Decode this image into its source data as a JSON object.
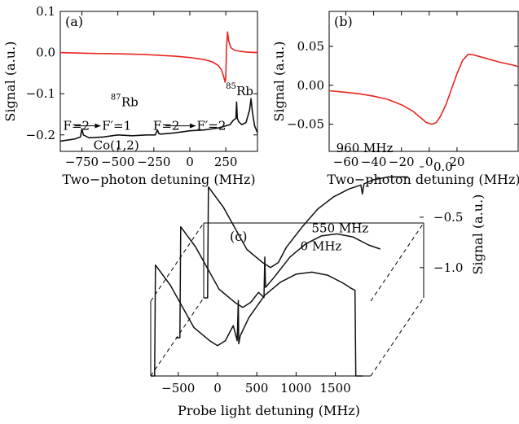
{
  "chart_data": [
    {
      "panel": "(a)",
      "type": "line",
      "xlabel": "Two−photon detuning (MHz)",
      "ylabel": "Signal (a.u.)",
      "xlim": [
        -900,
        470
      ],
      "ylim": [
        -0.24,
        0.1
      ],
      "xticks": [
        "−750",
        "−500",
        "−250",
        "0",
        "250"
      ],
      "xtick_values": [
        -750,
        -500,
        -250,
        0,
        250
      ],
      "yticks": [
        "0.1",
        "0.0",
        "−0.1",
        "−0.2"
      ],
      "ytick_values": [
        0.1,
        0.0,
        -0.1,
        -0.2
      ],
      "series": [
        {
          "color": "#e8251f",
          "x": [
            -900,
            -700,
            -500,
            -300,
            -200,
            -100,
            0,
            100,
            160,
            200,
            220,
            235,
            245,
            250,
            255,
            262,
            270,
            285,
            310,
            350,
            400,
            470
          ],
          "y": [
            0.0,
            -0.002,
            -0.003,
            -0.005,
            -0.007,
            -0.009,
            -0.012,
            -0.017,
            -0.023,
            -0.032,
            -0.042,
            -0.058,
            -0.072,
            -0.062,
            0.012,
            0.05,
            0.028,
            0.012,
            0.006,
            0.003,
            0.001,
            0.0
          ]
        },
        {
          "color": "#111111",
          "x": [
            -900,
            -800,
            -760,
            -750,
            -740,
            -700,
            -600,
            -500,
            -400,
            -300,
            -240,
            -225,
            -215,
            -200,
            -100,
            0,
            100,
            200,
            280,
            300,
            320,
            325,
            330,
            340,
            360,
            390,
            415,
            425,
            435,
            450,
            470
          ],
          "y": [
            -0.215,
            -0.21,
            -0.205,
            -0.185,
            -0.2,
            -0.207,
            -0.205,
            -0.2,
            -0.202,
            -0.2,
            -0.2,
            -0.188,
            -0.197,
            -0.198,
            -0.195,
            -0.19,
            -0.188,
            -0.183,
            -0.175,
            -0.165,
            -0.16,
            -0.12,
            -0.16,
            -0.168,
            -0.175,
            -0.17,
            -0.14,
            -0.112,
            -0.145,
            -0.178,
            -0.195
          ]
        }
      ],
      "annotations": [
        {
          "text": "F=2",
          "x": -880,
          "y": -0.178
        },
        {
          "text": "F′=1",
          "x": -610,
          "y": -0.178
        },
        {
          "text": "F=2",
          "x": -255,
          "y": -0.178
        },
        {
          "text": "F′=2",
          "x": 48,
          "y": -0.178
        },
        {
          "text": "Co(1,2)",
          "x": -670,
          "y": -0.225
        },
        {
          "sup": "87",
          "text": "Rb",
          "x": -550,
          "y": -0.13
        },
        {
          "sup": "85",
          "text": "Rb",
          "x": 250,
          "y": -0.104
        }
      ],
      "arrows": [
        {
          "x": [
            -800,
            -620
          ],
          "y": [
            -0.178,
            -0.178
          ]
        },
        {
          "x": [
            -170,
            40
          ],
          "y": [
            -0.178,
            -0.178
          ]
        }
      ]
    },
    {
      "panel": "(b)",
      "type": "line",
      "xlabel": "Two−photon detuning (MHz)",
      "ylabel": "Signal (a.u.)",
      "xlim": [
        -72,
        64
      ],
      "ylim": [
        -0.085,
        0.095
      ],
      "xticks": [
        "−60",
        "−40",
        "−20",
        "0",
        "20"
      ],
      "xtick_values": [
        -60,
        -40,
        -20,
        0,
        20
      ],
      "yticks": [
        "0.05",
        "0.00",
        "−0.05"
      ],
      "ytick_values": [
        0.05,
        0.0,
        -0.05
      ],
      "series": [
        {
          "color": "#e8251f",
          "x": [
            -72,
            -60,
            -50,
            -40,
            -30,
            -20,
            -12,
            -6,
            -2,
            2,
            5,
            8,
            12,
            16,
            20,
            24,
            28,
            32,
            40,
            50,
            60,
            64
          ],
          "y": [
            -0.007,
            -0.009,
            -0.011,
            -0.014,
            -0.018,
            -0.025,
            -0.033,
            -0.042,
            -0.048,
            -0.05,
            -0.048,
            -0.04,
            -0.025,
            -0.005,
            0.015,
            0.032,
            0.04,
            0.039,
            0.035,
            0.03,
            0.026,
            0.024
          ]
        }
      ]
    },
    {
      "panel": "(c)",
      "type": "line",
      "xlabel": "Probe light detuning (MHz)",
      "ylabel": "Signal (a.u.)",
      "xlim": [
        -850,
        1950
      ],
      "ylim": [
        -1.3,
        0.25
      ],
      "xticks": [
        "−500",
        "0",
        "500",
        "1000",
        "1500"
      ],
      "xtick_values": [
        -500,
        0,
        500,
        1000,
        1500
      ],
      "yticks": [
        "0.0",
        "−0.5",
        "−1.0"
      ],
      "ytick_values": [
        0.0,
        -0.5,
        -1.0
      ],
      "series": [
        {
          "name": "0 MHz",
          "color": "#111111",
          "x": [
            -850,
            -800,
            -790,
            -600,
            -300,
            -100,
            0,
            100,
            200,
            250,
            265,
            270,
            290,
            400,
            600,
            800,
            1000,
            1200,
            1400,
            1600,
            1700,
            1750,
            1760,
            1850
          ],
          "y": [
            -1.3,
            -1.3,
            -0.2,
            -0.4,
            -0.82,
            -0.95,
            -1.0,
            -0.95,
            -0.8,
            -0.95,
            -0.55,
            -0.98,
            -0.9,
            -0.72,
            -0.5,
            -0.37,
            -0.29,
            -0.27,
            -0.3,
            -0.38,
            -0.43,
            -0.45,
            -1.3,
            -1.3
          ]
        },
        {
          "name": "550 MHz",
          "color": "#111111",
          "x": [
            -850,
            -800,
            -790,
            -600,
            -300,
            -100,
            0,
            100,
            200,
            270,
            280,
            290,
            400,
            600,
            800,
            1000,
            1200,
            1400,
            1600,
            1750
          ],
          "y": [
            -1.3,
            -1.3,
            -0.2,
            -0.4,
            -0.82,
            -0.95,
            -1.0,
            -0.95,
            -0.85,
            -0.9,
            -0.5,
            -0.8,
            -0.7,
            -0.5,
            -0.37,
            -0.29,
            -0.27,
            -0.3,
            -0.38,
            -0.42
          ]
        },
        {
          "name": "960 MHz",
          "color": "#111111",
          "x": [
            -850,
            -800,
            -790,
            -600,
            -300,
            -100,
            0,
            100,
            200,
            400,
            600,
            800,
            1000,
            1150,
            1170,
            1190,
            1300,
            1500,
            1750
          ],
          "y": [
            -1.3,
            -1.3,
            -0.2,
            -0.4,
            -0.82,
            -0.95,
            -1.0,
            -0.95,
            -0.8,
            -0.6,
            -0.42,
            -0.3,
            -0.22,
            -0.18,
            -0.27,
            -0.17,
            -0.13,
            -0.1,
            -0.1
          ]
        }
      ]
    }
  ]
}
